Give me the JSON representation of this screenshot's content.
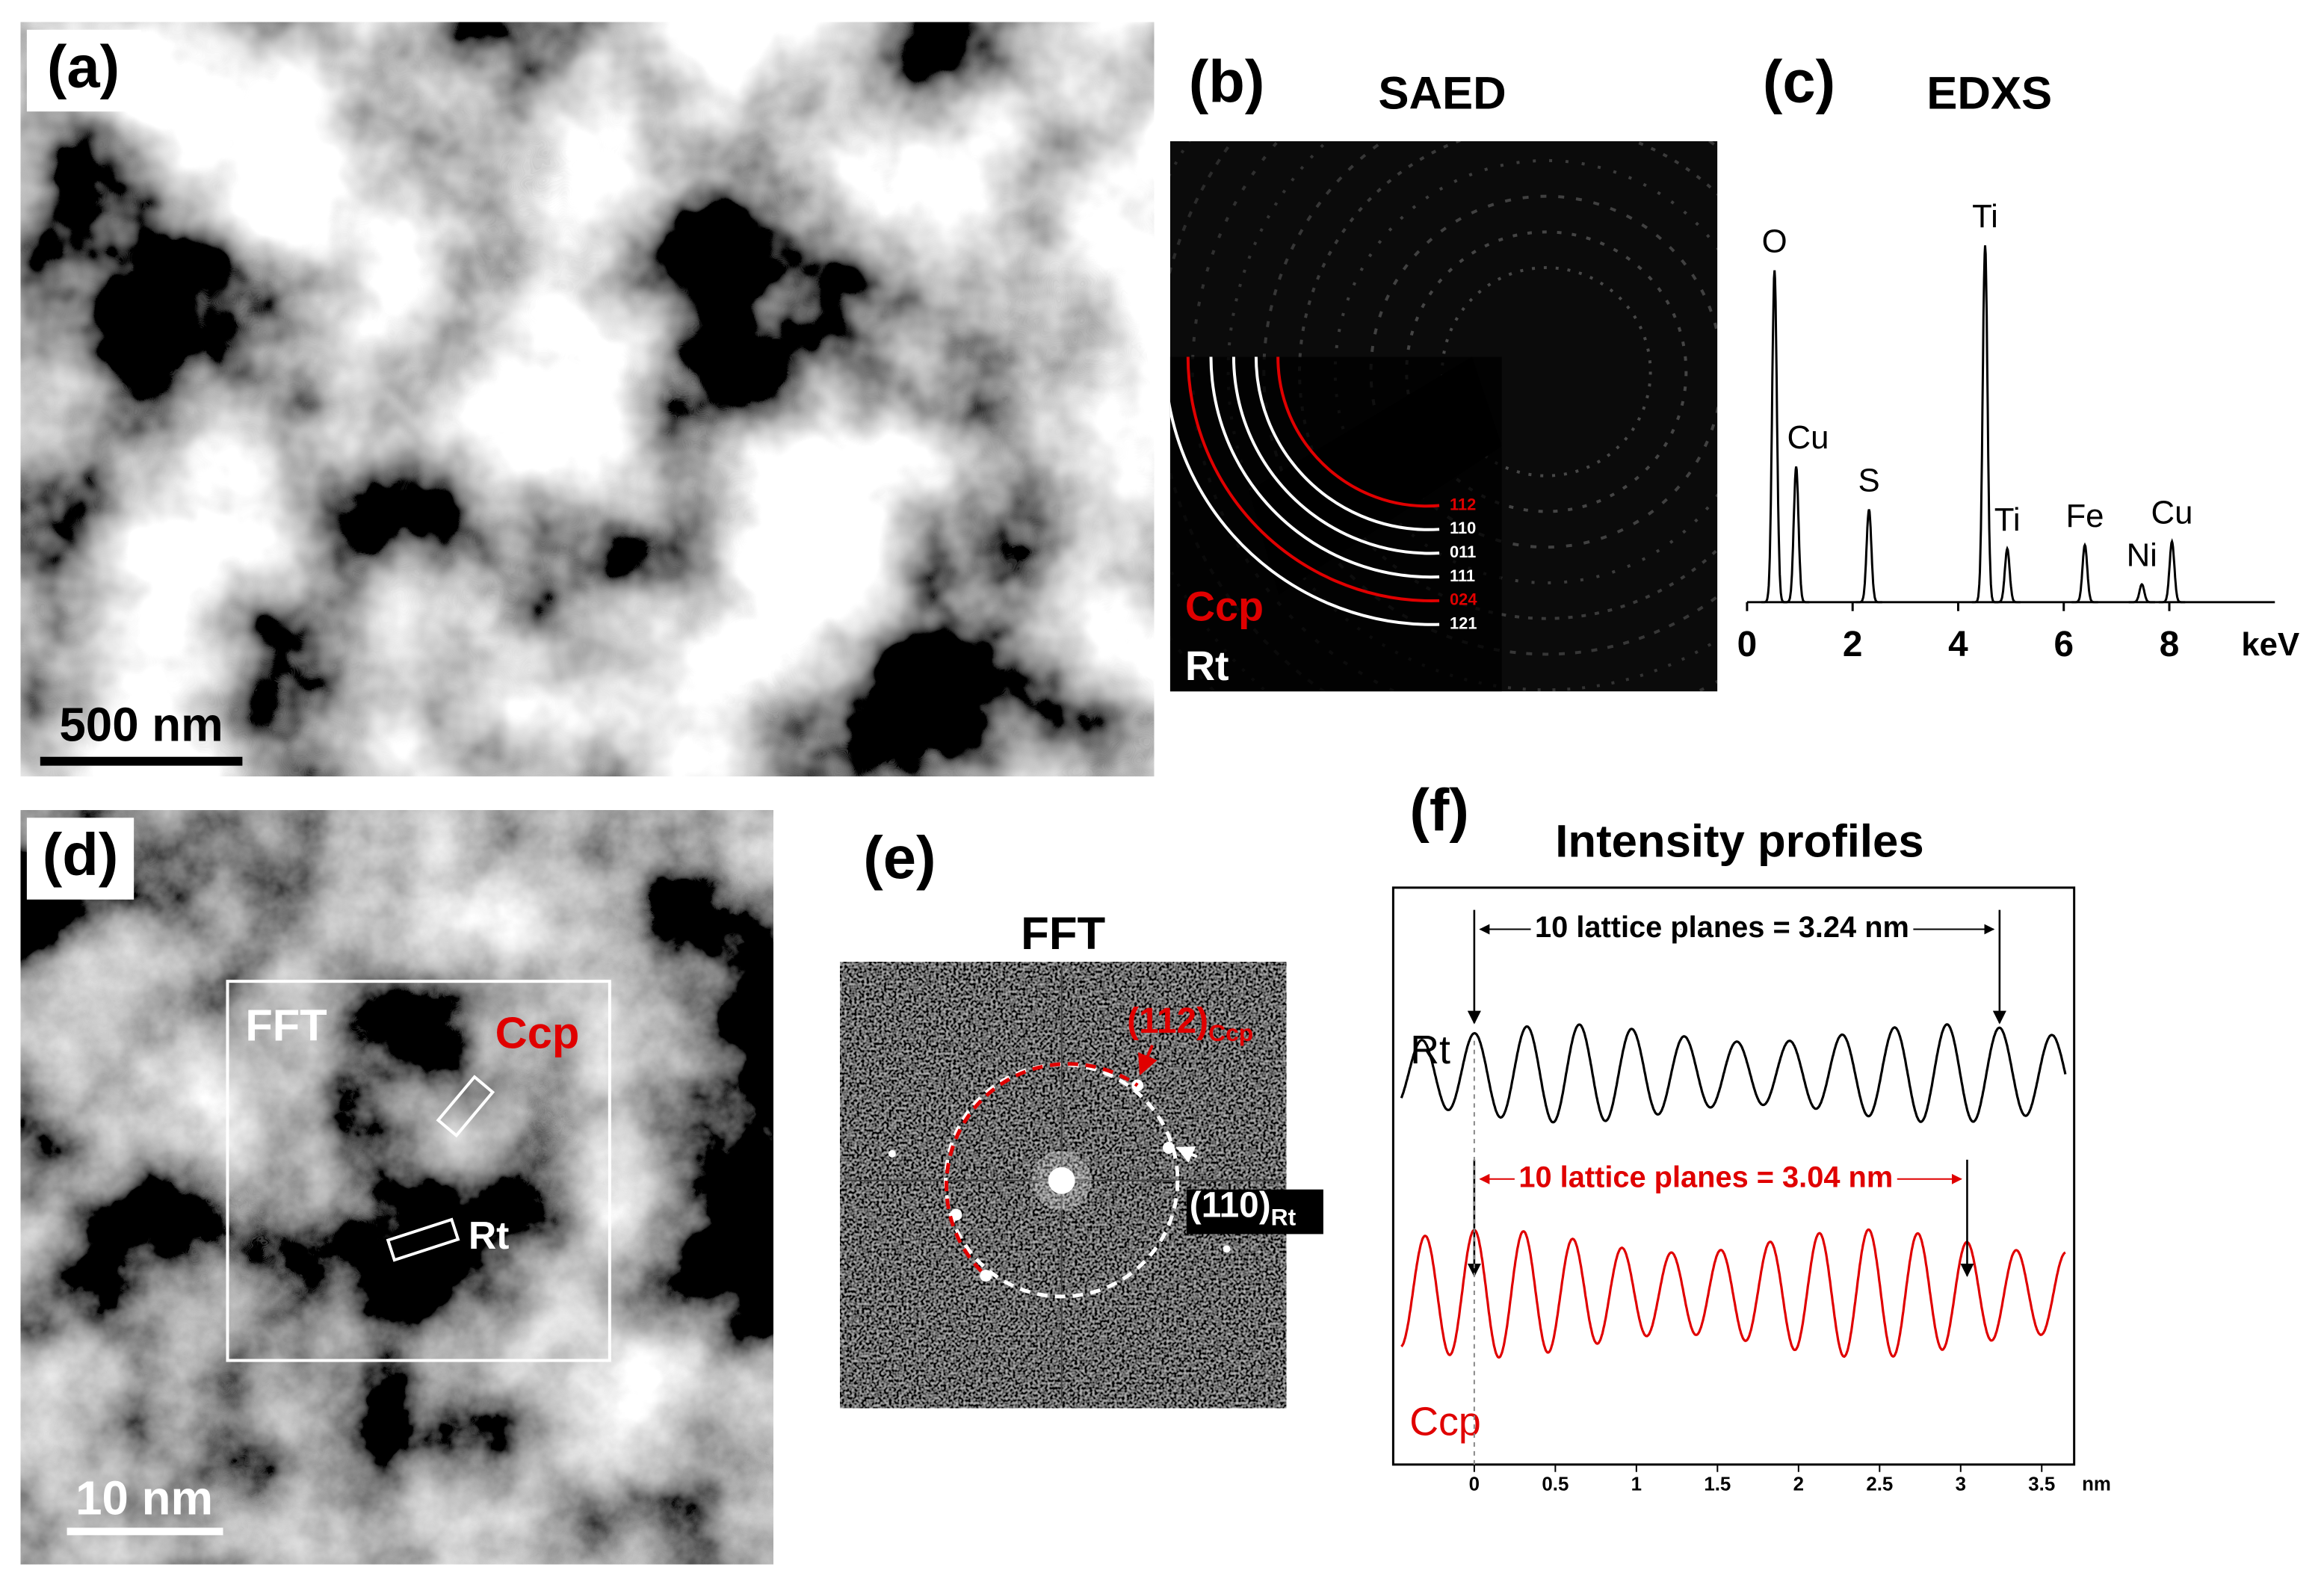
{
  "panels": {
    "a": {
      "label": "(a)",
      "scale_bar": "500 nm"
    },
    "b": {
      "label": "(b)",
      "title": "SAED",
      "rings": [
        {
          "label": "112",
          "color": "#e00000"
        },
        {
          "label": "110",
          "color": "#ffffff"
        },
        {
          "label": "011",
          "color": "#ffffff"
        },
        {
          "label": "111",
          "color": "#ffffff"
        },
        {
          "label": "024",
          "color": "#e00000"
        },
        {
          "label": "121",
          "color": "#ffffff"
        }
      ],
      "phase_labels": [
        {
          "text": "Ccp",
          "color": "#e00000"
        },
        {
          "text": "Rt",
          "color": "#ffffff"
        }
      ]
    },
    "c": {
      "label": "(c)",
      "title": "EDXS",
      "x_unit": "keV",
      "xlim": [
        0,
        10
      ],
      "xticks": [
        0,
        2,
        4,
        6,
        8
      ],
      "peaks": [
        {
          "name": "O",
          "energy": 0.52,
          "height": 93
        },
        {
          "name": "Cu",
          "energy": 0.93,
          "height": 38
        },
        {
          "name": "S",
          "energy": 2.31,
          "height": 26
        },
        {
          "name": "Ti",
          "energy": 4.51,
          "height": 100
        },
        {
          "name": "Ti",
          "energy": 4.93,
          "height": 15
        },
        {
          "name": "Fe",
          "energy": 6.4,
          "height": 16
        },
        {
          "name": "Ni",
          "energy": 7.48,
          "height": 5
        },
        {
          "name": "Cu",
          "energy": 8.05,
          "height": 17
        }
      ]
    },
    "d": {
      "label": "(d)",
      "scale_bar": "10 nm",
      "box_label": "FFT",
      "phase_labels": [
        {
          "text": "Ccp",
          "color": "#e00000"
        },
        {
          "text": "Rt",
          "color": "#ffffff"
        }
      ]
    },
    "e": {
      "label": "(e)",
      "title": "FFT",
      "spots": [
        {
          "text": "(112)",
          "sub": "Ccp",
          "color": "#e00000"
        },
        {
          "text": "(110)",
          "sub": "Rt",
          "color": "#ffffff"
        }
      ]
    },
    "f": {
      "label": "(f)",
      "title": "Intensity profiles",
      "x_unit": "nm",
      "xlim": [
        -0.5,
        3.7
      ],
      "xticks": [
        0,
        0.5,
        1,
        1.5,
        2,
        2.5,
        3,
        3.5
      ],
      "profiles": [
        {
          "name": "Rt",
          "color": "#000000",
          "annotation": "10 lattice planes = 3.24 nm",
          "markers": [
            0,
            3.24
          ],
          "planes": 10
        },
        {
          "name": "Ccp",
          "color": "#e00000",
          "annotation": "10 lattice planes = 3.04 nm",
          "markers": [
            0,
            3.04
          ],
          "planes": 10
        }
      ]
    }
  }
}
